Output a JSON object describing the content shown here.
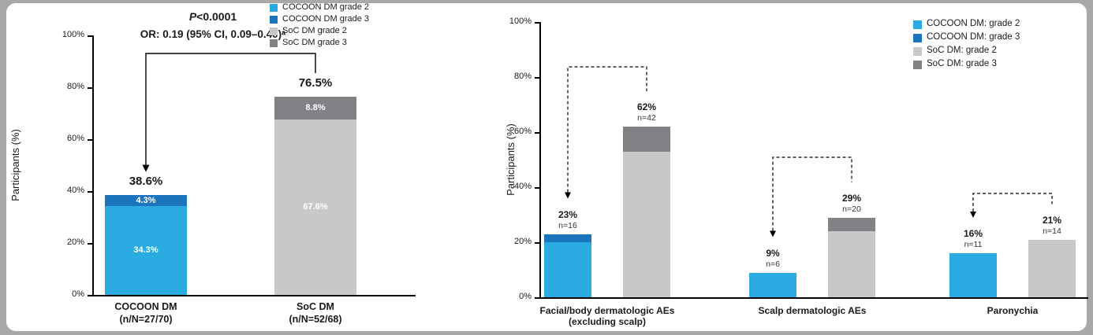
{
  "figure": {
    "background": "#a8a8a8",
    "panel_color": "#ffffff"
  },
  "colors": {
    "cocoon_grade2": "#29ABE2",
    "cocoon_grade3": "#1C75BC",
    "soc_grade2": "#C7C8CA",
    "soc_grade3": "#808285",
    "axis": "#000000"
  },
  "chart_data": [
    {
      "type": "bar",
      "stacked": true,
      "ylabel": "Participants (%)",
      "ylim": [
        0,
        100
      ],
      "grid": false,
      "legend_position": "top-right",
      "yticks": [
        {
          "value": 0,
          "label": "0%"
        },
        {
          "value": 20,
          "label": "20%"
        },
        {
          "value": 40,
          "label": "40%"
        },
        {
          "value": 60,
          "label": "60%"
        },
        {
          "value": 80,
          "label": "80%"
        },
        {
          "value": 100,
          "label": "100%"
        }
      ],
      "annotations": {
        "p_prefix": "P",
        "p_rest": "<0.0001",
        "or_text": "OR: 0.19 (95% CI, 0.09–0.40)ᵃ"
      },
      "legend": [
        {
          "label": "COCOON DM grade 2",
          "color_key": "cocoon_grade2"
        },
        {
          "label": "COCOON DM grade 3",
          "color_key": "cocoon_grade3"
        },
        {
          "label": "SoC DM grade 2",
          "color_key": "soc_grade2"
        },
        {
          "label": "SoC DM grade 3",
          "color_key": "soc_grade3"
        }
      ],
      "bars": [
        {
          "name": "cocoon-dm",
          "label_lines": [
            "COCOON DM",
            "(n/N=27/70)"
          ],
          "total": 38.6,
          "total_label": "38.6%",
          "segments": [
            {
              "name": "grade2",
              "value": 34.3,
              "label": "34.3%",
              "color_key": "cocoon_grade2"
            },
            {
              "name": "grade3",
              "value": 4.3,
              "label": "4.3%",
              "color_key": "cocoon_grade3"
            }
          ]
        },
        {
          "name": "soc-dm",
          "label_lines": [
            "SoC DM",
            "(n/N=52/68)"
          ],
          "total": 76.5,
          "total_label": "76.5%",
          "segments": [
            {
              "name": "grade2",
              "value": 67.6,
              "label": "67.6%",
              "color_key": "soc_grade2"
            },
            {
              "name": "grade3",
              "value": 8.8,
              "label": "8.8%",
              "color_key": "soc_grade3"
            }
          ]
        }
      ]
    },
    {
      "type": "bar",
      "stacked": true,
      "grouped": true,
      "ylabel": "Participants (%)",
      "ylim": [
        0,
        100
      ],
      "grid": false,
      "legend_position": "top-right",
      "yticks": [
        {
          "value": 0,
          "label": "0%"
        },
        {
          "value": 20,
          "label": "20%"
        },
        {
          "value": 40,
          "label": "40%"
        },
        {
          "value": 60,
          "label": "60%"
        },
        {
          "value": 80,
          "label": "80%"
        },
        {
          "value": 100,
          "label": "100%"
        }
      ],
      "legend": [
        {
          "label": "COCOON DM: grade 2",
          "color_key": "cocoon_grade2"
        },
        {
          "label": "COCOON DM: grade 3",
          "color_key": "cocoon_grade3"
        },
        {
          "label": "SoC DM: grade 2",
          "color_key": "soc_grade2"
        },
        {
          "label": "SoC DM: grade 3",
          "color_key": "soc_grade3"
        }
      ],
      "groups": [
        {
          "name": "facial-body",
          "label_lines": [
            "Facial/body dermatologic AEs",
            "(excluding scalp)"
          ],
          "bars": [
            {
              "series": "COCOON DM",
              "total": 23,
              "pct_label": "23%",
              "n_label": "n=16",
              "segments": [
                {
                  "name": "grade2",
                  "value": 20,
                  "color_key": "cocoon_grade2"
                },
                {
                  "name": "grade3",
                  "value": 3,
                  "color_key": "cocoon_grade3"
                }
              ]
            },
            {
              "series": "SoC DM",
              "total": 62,
              "pct_label": "62%",
              "n_label": "n=42",
              "segments": [
                {
                  "name": "grade2",
                  "value": 53,
                  "color_key": "soc_grade2"
                },
                {
                  "name": "grade3",
                  "value": 9,
                  "color_key": "soc_grade3"
                }
              ]
            }
          ]
        },
        {
          "name": "scalp",
          "label_lines": [
            "Scalp dermatologic AEs"
          ],
          "bars": [
            {
              "series": "COCOON DM",
              "total": 9,
              "pct_label": "9%",
              "n_label": "n=6",
              "segments": [
                {
                  "name": "grade2",
                  "value": 9,
                  "color_key": "cocoon_grade2"
                }
              ]
            },
            {
              "series": "SoC DM",
              "total": 29,
              "pct_label": "29%",
              "n_label": "n=20",
              "segments": [
                {
                  "name": "grade2",
                  "value": 24,
                  "color_key": "soc_grade2"
                },
                {
                  "name": "grade3",
                  "value": 5,
                  "color_key": "soc_grade3"
                }
              ]
            }
          ]
        },
        {
          "name": "paronychia",
          "label_lines": [
            "Paronychia"
          ],
          "bars": [
            {
              "series": "COCOON DM",
              "total": 16,
              "pct_label": "16%",
              "n_label": "n=11",
              "segments": [
                {
                  "name": "grade2",
                  "value": 16,
                  "color_key": "cocoon_grade2"
                }
              ]
            },
            {
              "series": "SoC DM",
              "total": 21,
              "pct_label": "21%",
              "n_label": "n=14",
              "segments": [
                {
                  "name": "grade2",
                  "value": 21,
                  "color_key": "soc_grade2"
                }
              ]
            }
          ]
        }
      ]
    }
  ]
}
